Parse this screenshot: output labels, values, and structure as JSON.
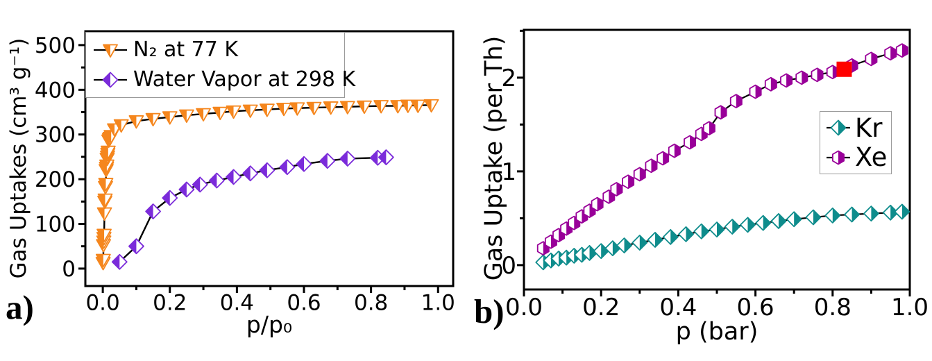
{
  "figure": {
    "background": "#ffffff",
    "panel_a_label": "a)",
    "panel_b_label": "b)"
  },
  "chart_data": [
    {
      "id": "a",
      "type": "line",
      "panel_label": "a)",
      "xlabel": "p/p₀",
      "ylabel": "Gas Uptakes (cm³ g⁻¹)",
      "xlim": [
        -0.052,
        1.045
      ],
      "ylim": [
        -39,
        531
      ],
      "xticks": [
        0.0,
        0.2,
        0.4,
        0.6,
        0.8,
        1.0
      ],
      "yticks": [
        0,
        100,
        200,
        300,
        400,
        500
      ],
      "xtick_decimals": 1,
      "ytick_decimals": 0,
      "xminor_step": 0.1,
      "yminor_step": 50,
      "grid": false,
      "legend_position": "top-left",
      "line_color": "#000000",
      "series": [
        {
          "name": "N₂ at 77 K",
          "marker": "triangle-down",
          "color": "#F5861D",
          "filled_half": "left",
          "marker_size": 10,
          "points": [
            [
              0.001,
              13
            ],
            [
              0.0015,
              20
            ],
            [
              0.002,
              53
            ],
            [
              0.003,
              61
            ],
            [
              0.0035,
              69
            ],
            [
              0.004,
              76
            ],
            [
              0.005,
              124
            ],
            [
              0.006,
              150
            ],
            [
              0.007,
              155
            ],
            [
              0.008,
              183
            ],
            [
              0.009,
              190
            ],
            [
              0.01,
              221
            ],
            [
              0.011,
              226
            ],
            [
              0.012,
              231
            ],
            [
              0.013,
              246
            ],
            [
              0.014,
              251
            ],
            [
              0.015,
              257
            ],
            [
              0.016,
              262
            ],
            [
              0.018,
              287
            ],
            [
              0.02,
              290
            ],
            [
              0.022,
              293
            ],
            [
              0.025,
              297
            ],
            [
              0.035,
              312
            ],
            [
              0.055,
              321
            ],
            [
              0.1,
              330
            ],
            [
              0.15,
              335
            ],
            [
              0.2,
              339
            ],
            [
              0.25,
              343
            ],
            [
              0.3,
              346
            ],
            [
              0.35,
              349
            ],
            [
              0.39,
              352
            ],
            [
              0.44,
              354
            ],
            [
              0.49,
              356
            ],
            [
              0.54,
              358
            ],
            [
              0.58,
              359
            ],
            [
              0.63,
              360
            ],
            [
              0.68,
              361
            ],
            [
              0.73,
              362
            ],
            [
              0.78,
              363
            ],
            [
              0.83,
              364
            ],
            [
              0.88,
              364
            ],
            [
              0.91,
              365
            ],
            [
              0.94,
              365
            ],
            [
              0.98,
              366
            ]
          ]
        },
        {
          "name": "Water Vapor at 298 K",
          "marker": "diamond",
          "color": "#7B2BDA",
          "filled_half": "left",
          "marker_size": 10.5,
          "points": [
            [
              0.05,
              15
            ],
            [
              0.1,
              50
            ],
            [
              0.15,
              128
            ],
            [
              0.2,
              158
            ],
            [
              0.25,
              177
            ],
            [
              0.29,
              188
            ],
            [
              0.34,
              197
            ],
            [
              0.39,
              205
            ],
            [
              0.44,
              213
            ],
            [
              0.49,
              220
            ],
            [
              0.55,
              227
            ],
            [
              0.6,
              234
            ],
            [
              0.67,
              241
            ],
            [
              0.73,
              246
            ],
            [
              0.82,
              248
            ],
            [
              0.845,
              249
            ]
          ]
        }
      ],
      "annotations": []
    },
    {
      "id": "b",
      "type": "line",
      "panel_label": "b)",
      "xlabel": "p (bar)",
      "ylabel": "Gas Uptake (per Th)",
      "xlim": [
        0.0,
        1.0
      ],
      "ylim": [
        -0.26,
        2.51
      ],
      "xticks": [
        0.0,
        0.2,
        0.4,
        0.6,
        0.8,
        1.0
      ],
      "yticks": [
        0,
        1,
        2
      ],
      "xtick_decimals": 1,
      "ytick_decimals": 0,
      "xminor_step": 0.1,
      "yminor_step": 0.5,
      "grid": false,
      "legend_position": "middle-right",
      "line_color": "#000000",
      "series": [
        {
          "name": "Kr",
          "marker": "diamond",
          "color": "#0E8C8C",
          "filled_half": "right",
          "marker_size": 10.5,
          "points": [
            [
              0.05,
              0.03
            ],
            [
              0.07,
              0.05
            ],
            [
              0.09,
              0.07
            ],
            [
              0.11,
              0.08
            ],
            [
              0.13,
              0.1
            ],
            [
              0.15,
              0.11
            ],
            [
              0.17,
              0.13
            ],
            [
              0.2,
              0.15
            ],
            [
              0.23,
              0.18
            ],
            [
              0.26,
              0.21
            ],
            [
              0.3,
              0.24
            ],
            [
              0.34,
              0.27
            ],
            [
              0.38,
              0.3
            ],
            [
              0.42,
              0.33
            ],
            [
              0.46,
              0.36
            ],
            [
              0.5,
              0.38
            ],
            [
              0.54,
              0.41
            ],
            [
              0.58,
              0.43
            ],
            [
              0.62,
              0.45
            ],
            [
              0.66,
              0.47
            ],
            [
              0.7,
              0.49
            ],
            [
              0.75,
              0.51
            ],
            [
              0.8,
              0.53
            ],
            [
              0.85,
              0.54
            ],
            [
              0.9,
              0.55
            ],
            [
              0.95,
              0.56
            ],
            [
              0.98,
              0.57
            ]
          ]
        },
        {
          "name": "Xe",
          "marker": "hexagon",
          "color": "#990099",
          "filled_half": "right",
          "marker_size": 9.5,
          "points": [
            [
              0.05,
              0.18
            ],
            [
              0.07,
              0.25
            ],
            [
              0.09,
              0.32
            ],
            [
              0.11,
              0.39
            ],
            [
              0.13,
              0.45
            ],
            [
              0.15,
              0.52
            ],
            [
              0.17,
              0.58
            ],
            [
              0.19,
              0.65
            ],
            [
              0.22,
              0.73
            ],
            [
              0.24,
              0.81
            ],
            [
              0.27,
              0.89
            ],
            [
              0.3,
              0.97
            ],
            [
              0.33,
              1.06
            ],
            [
              0.36,
              1.14
            ],
            [
              0.39,
              1.22
            ],
            [
              0.43,
              1.31
            ],
            [
              0.46,
              1.4
            ],
            [
              0.48,
              1.46
            ],
            [
              0.51,
              1.63
            ],
            [
              0.55,
              1.75
            ],
            [
              0.6,
              1.85
            ],
            [
              0.64,
              1.93
            ],
            [
              0.68,
              1.97
            ],
            [
              0.72,
              2.0
            ],
            [
              0.76,
              2.03
            ],
            [
              0.8,
              2.06
            ],
            [
              0.85,
              2.13
            ],
            [
              0.9,
              2.2
            ],
            [
              0.95,
              2.26
            ],
            [
              0.98,
              2.29
            ]
          ]
        }
      ],
      "annotations": [
        {
          "type": "point",
          "name": "highlight-square",
          "marker": "square",
          "color": "#FF0000",
          "x": 0.83,
          "y": 2.09,
          "marker_size": 11
        }
      ]
    }
  ]
}
